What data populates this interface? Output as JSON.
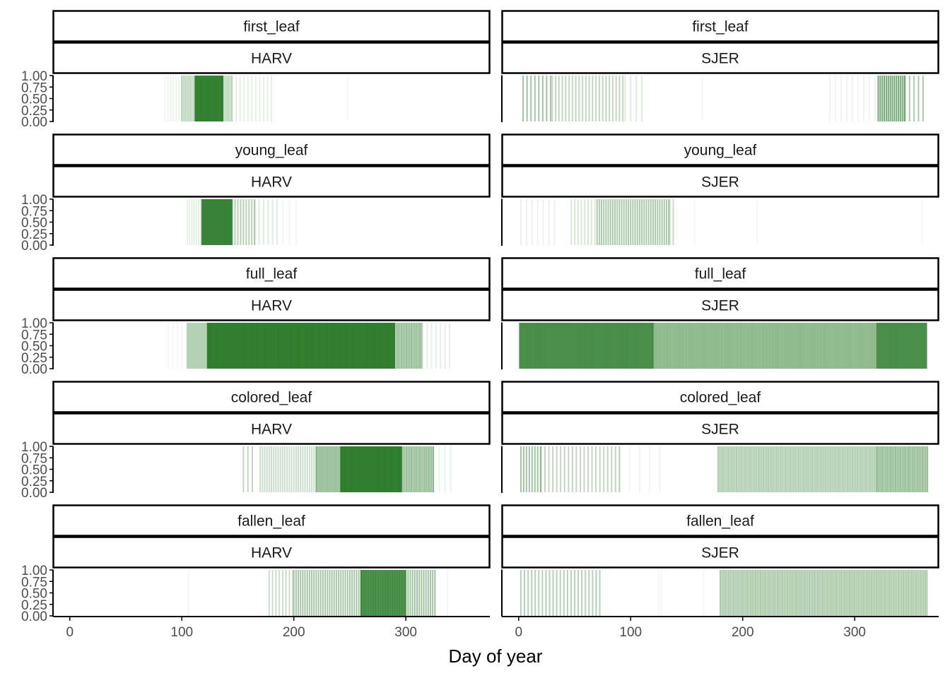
{
  "colors": {
    "bar": "#2e7d2e",
    "strip_fill": "#ffffff",
    "strip_border": "#000000",
    "axis": "#000000",
    "tick_text": "#4d4d4d"
  },
  "chart_data": {
    "type": "bar",
    "description_type": "faceted rug/segment plot",
    "xlabel": "Day of year",
    "ylabel": "",
    "x_ticks": [
      0,
      100,
      200,
      300
    ],
    "y_ticks": [
      "0.00",
      "0.25",
      "0.50",
      "0.75",
      "1.00"
    ],
    "ylim": [
      0,
      1
    ],
    "facet_rows": [
      "first_leaf",
      "young_leaf",
      "full_leaf",
      "colored_leaf",
      "fallen_leaf"
    ],
    "facet_cols": [
      "HARV",
      "SJER"
    ],
    "panels": [
      {
        "phenophase": "first_leaf",
        "site": "HARV",
        "xlim": [
          -15,
          375
        ],
        "groups": [
          {
            "from": 85,
            "to": 100,
            "step": 2.5,
            "opacity": 0.08
          },
          {
            "from": 100,
            "to": 112,
            "step": 1.5,
            "opacity": 0.3
          },
          {
            "from": 112,
            "to": 137,
            "step": 0.7,
            "opacity": 0.9
          },
          {
            "from": 137,
            "to": 145,
            "step": 1.5,
            "opacity": 0.3
          },
          {
            "from": 145,
            "to": 180,
            "step": 3.5,
            "opacity": 0.12
          },
          {
            "from": 248,
            "to": 249,
            "step": 2,
            "opacity": 0.05
          }
        ]
      },
      {
        "phenophase": "first_leaf",
        "site": "SJER",
        "xlim": [
          -15,
          375
        ],
        "groups": [
          {
            "from": 4,
            "to": 30,
            "step": 3.5,
            "opacity": 0.45
          },
          {
            "from": 30,
            "to": 95,
            "step": 3,
            "opacity": 0.3
          },
          {
            "from": 95,
            "to": 110,
            "step": 5,
            "opacity": 0.15
          },
          {
            "from": 164,
            "to": 165,
            "step": 2,
            "opacity": 0.06
          },
          {
            "from": 278,
            "to": 320,
            "step": 5,
            "opacity": 0.08
          },
          {
            "from": 321,
            "to": 345,
            "step": 1.8,
            "opacity": 0.65
          },
          {
            "from": 345,
            "to": 363,
            "step": 4,
            "opacity": 0.4
          }
        ]
      },
      {
        "phenophase": "young_leaf",
        "site": "HARV",
        "xlim": [
          -15,
          375
        ],
        "groups": [
          {
            "from": 105,
            "to": 118,
            "step": 2,
            "opacity": 0.12
          },
          {
            "from": 118,
            "to": 145,
            "step": 0.7,
            "opacity": 0.85
          },
          {
            "from": 145,
            "to": 165,
            "step": 2.5,
            "opacity": 0.35
          },
          {
            "from": 165,
            "to": 185,
            "step": 4,
            "opacity": 0.15
          },
          {
            "from": 190,
            "to": 207,
            "step": 6,
            "opacity": 0.06
          }
        ]
      },
      {
        "phenophase": "young_leaf",
        "site": "SJER",
        "xlim": [
          -15,
          375
        ],
        "groups": [
          {
            "from": 2,
            "to": 35,
            "step": 5,
            "opacity": 0.1
          },
          {
            "from": 47,
            "to": 70,
            "step": 3,
            "opacity": 0.18
          },
          {
            "from": 70,
            "to": 135,
            "step": 2,
            "opacity": 0.4
          },
          {
            "from": 135,
            "to": 140,
            "step": 3,
            "opacity": 0.25
          },
          {
            "from": 157,
            "to": 158,
            "step": 2,
            "opacity": 0.06
          },
          {
            "from": 213,
            "to": 214,
            "step": 2,
            "opacity": 0.06
          },
          {
            "from": 360,
            "to": 361,
            "step": 2,
            "opacity": 0.05
          }
        ]
      },
      {
        "phenophase": "full_leaf",
        "site": "HARV",
        "xlim": [
          -15,
          375
        ],
        "groups": [
          {
            "from": 88,
            "to": 105,
            "step": 4,
            "opacity": 0.05
          },
          {
            "from": 105,
            "to": 123,
            "step": 1.2,
            "opacity": 0.35
          },
          {
            "from": 123,
            "to": 290,
            "step": 0.6,
            "opacity": 0.9
          },
          {
            "from": 290,
            "to": 315,
            "step": 1.5,
            "opacity": 0.5
          },
          {
            "from": 315,
            "to": 340,
            "step": 4,
            "opacity": 0.12
          }
        ]
      },
      {
        "phenophase": "full_leaf",
        "site": "SJER",
        "xlim": [
          -15,
          375
        ],
        "groups": [
          {
            "from": 1,
            "to": 120,
            "step": 1.1,
            "opacity": 0.85
          },
          {
            "from": 120,
            "to": 320,
            "step": 1.3,
            "opacity": 0.55
          },
          {
            "from": 320,
            "to": 365,
            "step": 1.1,
            "opacity": 0.85
          }
        ]
      },
      {
        "phenophase": "colored_leaf",
        "site": "HARV",
        "xlim": [
          -15,
          375
        ],
        "groups": [
          {
            "from": 155,
            "to": 165,
            "step": 4,
            "opacity": 0.3
          },
          {
            "from": 170,
            "to": 220,
            "step": 2,
            "opacity": 0.25
          },
          {
            "from": 220,
            "to": 242,
            "step": 1.2,
            "opacity": 0.45
          },
          {
            "from": 242,
            "to": 296,
            "step": 0.6,
            "opacity": 0.9
          },
          {
            "from": 296,
            "to": 325,
            "step": 1.5,
            "opacity": 0.5
          },
          {
            "from": 325,
            "to": 340,
            "step": 5,
            "opacity": 0.1
          }
        ]
      },
      {
        "phenophase": "colored_leaf",
        "site": "SJER",
        "xlim": [
          -15,
          375
        ],
        "groups": [
          {
            "from": 2,
            "to": 20,
            "step": 2.5,
            "opacity": 0.45
          },
          {
            "from": 20,
            "to": 90,
            "step": 3.5,
            "opacity": 0.3
          },
          {
            "from": 90,
            "to": 130,
            "step": 9,
            "opacity": 0.08
          },
          {
            "from": 178,
            "to": 320,
            "step": 1.5,
            "opacity": 0.38
          },
          {
            "from": 320,
            "to": 365,
            "step": 1.5,
            "opacity": 0.5
          }
        ]
      },
      {
        "phenophase": "fallen_leaf",
        "site": "HARV",
        "xlim": [
          -15,
          375
        ],
        "groups": [
          {
            "from": 106,
            "to": 107,
            "step": 2,
            "opacity": 0.06
          },
          {
            "from": 178,
            "to": 200,
            "step": 3,
            "opacity": 0.25
          },
          {
            "from": 200,
            "to": 260,
            "step": 2,
            "opacity": 0.42
          },
          {
            "from": 260,
            "to": 300,
            "step": 0.9,
            "opacity": 0.8
          },
          {
            "from": 300,
            "to": 326,
            "step": 2,
            "opacity": 0.45
          },
          {
            "from": 337,
            "to": 338,
            "step": 2,
            "opacity": 0.08
          }
        ]
      },
      {
        "phenophase": "fallen_leaf",
        "site": "SJER",
        "xlim": [
          -15,
          375
        ],
        "groups": [
          {
            "from": 2,
            "to": 75,
            "step": 3.2,
            "opacity": 0.35
          },
          {
            "from": 125,
            "to": 128,
            "step": 2.5,
            "opacity": 0.06
          },
          {
            "from": 165,
            "to": 166,
            "step": 2,
            "opacity": 0.06
          },
          {
            "from": 180,
            "to": 365,
            "step": 1.5,
            "opacity": 0.4
          }
        ]
      }
    ]
  }
}
